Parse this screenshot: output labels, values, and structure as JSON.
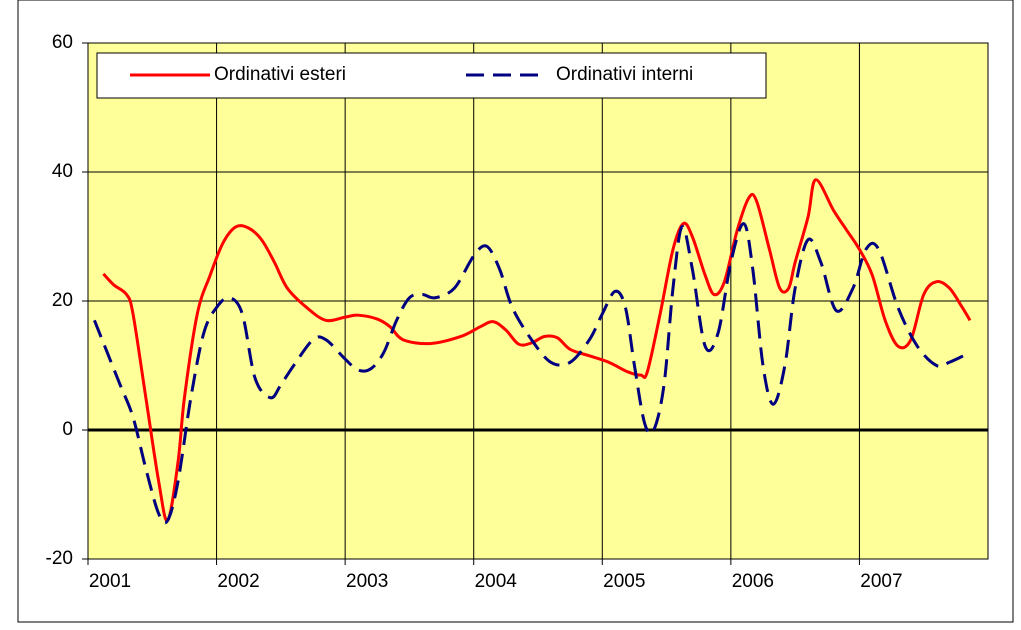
{
  "chart_data": {
    "type": "line",
    "xlim": [
      2001,
      2008
    ],
    "xticks": [
      2001,
      2002,
      2003,
      2004,
      2005,
      2006,
      2007
    ],
    "ylim": [
      -20,
      60
    ],
    "yticks": [
      -20,
      0,
      20,
      40,
      60
    ],
    "grid": true,
    "series": [
      {
        "name": "Ordinativi esteri",
        "color": "#ff0000",
        "dash": false,
        "x": [
          2001.12,
          2001.2,
          2001.3,
          2001.35,
          2001.45,
          2001.55,
          2001.62,
          2001.7,
          2001.75,
          2001.85,
          2001.95,
          2002.05,
          2002.15,
          2002.25,
          2002.35,
          2002.45,
          2002.55,
          2002.7,
          2002.85,
          2003.0,
          2003.1,
          2003.25,
          2003.35,
          2003.45,
          2003.66,
          2003.9,
          2004.05,
          2004.15,
          2004.25,
          2004.35,
          2004.45,
          2004.55,
          2004.65,
          2004.75,
          2004.9,
          2005.05,
          2005.2,
          2005.3,
          2005.35,
          2005.45,
          2005.55,
          2005.63,
          2005.7,
          2005.8,
          2005.87,
          2005.95,
          2006.05,
          2006.14,
          2006.2,
          2006.3,
          2006.38,
          2006.45,
          2006.5,
          2006.6,
          2006.66,
          2006.8,
          2006.9,
          2007.0,
          2007.1,
          2007.2,
          2007.3,
          2007.4,
          2007.5,
          2007.6,
          2007.7,
          2007.8,
          2007.86
        ],
        "values": [
          24.2,
          22.5,
          21,
          18,
          5,
          -8,
          -14,
          -5,
          5,
          18,
          24,
          29,
          31.5,
          31.3,
          29.5,
          26,
          22,
          19,
          17,
          17.5,
          17.8,
          17.2,
          16,
          14,
          13.4,
          14.5,
          16,
          16.8,
          15.5,
          13.3,
          13.5,
          14.5,
          14.3,
          12.5,
          11.5,
          10.5,
          9,
          8.5,
          9,
          18,
          28,
          32,
          30,
          24,
          21,
          23,
          31,
          36,
          35.5,
          28,
          22,
          22,
          26,
          33,
          38.8,
          34,
          31,
          28,
          24,
          17,
          13,
          14,
          21,
          23,
          22,
          19,
          17
        ]
      },
      {
        "name": "Ordinativi interni",
        "color": "#000080",
        "dash": true,
        "x": [
          2001.05,
          2001.15,
          2001.25,
          2001.35,
          2001.45,
          2001.55,
          2001.62,
          2001.7,
          2001.8,
          2001.9,
          2002.0,
          2002.1,
          2002.2,
          2002.3,
          2002.42,
          2002.5,
          2002.6,
          2002.75,
          2002.85,
          2003.0,
          2003.1,
          2003.2,
          2003.3,
          2003.4,
          2003.5,
          2003.6,
          2003.7,
          2003.85,
          2004.0,
          2004.1,
          2004.2,
          2004.3,
          2004.45,
          2004.6,
          2004.75,
          2004.9,
          2005.0,
          2005.1,
          2005.18,
          2005.25,
          2005.33,
          2005.4,
          2005.48,
          2005.55,
          2005.62,
          2005.7,
          2005.8,
          2005.9,
          2006.0,
          2006.1,
          2006.17,
          2006.25,
          2006.33,
          2006.42,
          2006.5,
          2006.6,
          2006.7,
          2006.82,
          2006.95,
          2007.05,
          2007.15,
          2007.3,
          2007.45,
          2007.6,
          2007.7,
          2007.86
        ],
        "values": [
          17,
          12,
          7,
          2,
          -6,
          -13,
          -14,
          -8,
          5,
          15,
          19,
          20.5,
          18,
          8,
          5,
          7,
          10,
          14,
          14,
          11,
          9.3,
          9.5,
          12,
          17,
          20.5,
          21,
          20.5,
          22,
          27,
          28.5,
          25,
          19,
          14,
          10.5,
          10.5,
          14,
          18,
          21.5,
          19,
          10,
          1,
          0,
          7,
          22,
          31.5,
          25,
          13,
          15,
          26,
          32,
          25,
          10,
          4,
          10,
          22,
          29.5,
          26,
          18.5,
          22,
          28,
          28,
          19,
          13,
          10,
          10.5,
          12
        ]
      }
    ]
  }
}
